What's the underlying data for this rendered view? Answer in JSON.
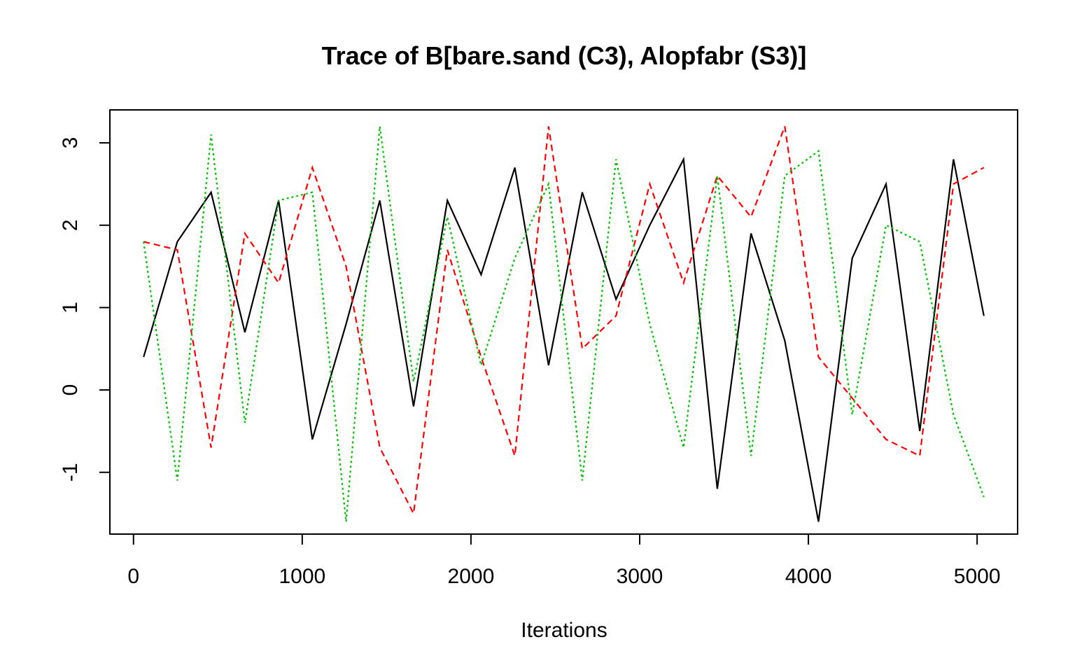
{
  "chart_data": {
    "type": "line",
    "title": "Trace of B[bare.sand (C3), Alopfabr (S3)]",
    "xlabel": "Iterations",
    "ylabel": "",
    "xlim": [
      -140,
      5240
    ],
    "ylim": [
      -1.75,
      3.4
    ],
    "x_ticks": [
      0,
      1000,
      2000,
      3000,
      4000,
      5000
    ],
    "x_tick_labels": [
      "0",
      "1000",
      "2000",
      "3000",
      "4000",
      "5000"
    ],
    "y_ticks": [
      -1,
      0,
      1,
      2,
      3
    ],
    "y_tick_labels": [
      "-1",
      "0",
      "1",
      "2",
      "3"
    ],
    "grid": false,
    "legend": "none",
    "series": [
      {
        "color": "#000000",
        "line_style": "solid",
        "x": [
          60,
          260,
          460,
          660,
          860,
          1060,
          1260,
          1460,
          1660,
          1860,
          2060,
          2260,
          2460,
          2660,
          2860,
          3060,
          3260,
          3460,
          3660,
          3860,
          4060,
          4260,
          4460,
          4660,
          4860,
          5040
        ],
        "values": [
          0.4,
          1.8,
          2.4,
          0.7,
          2.3,
          -0.6,
          0.8,
          2.3,
          -0.2,
          2.3,
          1.4,
          2.7,
          0.3,
          2.4,
          1.1,
          2.0,
          2.8,
          -1.2,
          1.9,
          0.6,
          -1.6,
          1.6,
          2.5,
          -0.5,
          2.8,
          0.9
        ]
      },
      {
        "color": "#ff0000",
        "line_style": "dashed",
        "x": [
          60,
          260,
          460,
          660,
          860,
          1060,
          1260,
          1460,
          1660,
          1860,
          2060,
          2260,
          2460,
          2660,
          2860,
          3060,
          3260,
          3460,
          3660,
          3860,
          4060,
          4260,
          4460,
          4660,
          4860,
          5040
        ],
        "values": [
          1.8,
          1.7,
          -0.7,
          1.9,
          1.3,
          2.7,
          1.5,
          -0.7,
          -1.5,
          1.7,
          0.4,
          -0.8,
          3.2,
          0.5,
          0.9,
          2.5,
          1.3,
          2.6,
          2.1,
          3.2,
          0.4,
          -0.1,
          -0.6,
          -0.8,
          2.5,
          2.7
        ]
      },
      {
        "color": "#00c000",
        "line_style": "dotted",
        "x": [
          60,
          260,
          460,
          660,
          860,
          1060,
          1260,
          1460,
          1660,
          1860,
          2060,
          2260,
          2460,
          2660,
          2860,
          3060,
          3260,
          3460,
          3660,
          3860,
          4060,
          4260,
          4460,
          4660,
          4860,
          5040
        ],
        "values": [
          1.8,
          -1.1,
          3.1,
          -0.4,
          2.3,
          2.4,
          -1.6,
          3.2,
          0.1,
          2.1,
          0.3,
          1.6,
          2.5,
          -1.1,
          2.8,
          0.8,
          -0.7,
          2.6,
          -0.8,
          2.6,
          2.9,
          -0.3,
          2.0,
          1.8,
          -0.3,
          -1.3
        ]
      }
    ]
  }
}
